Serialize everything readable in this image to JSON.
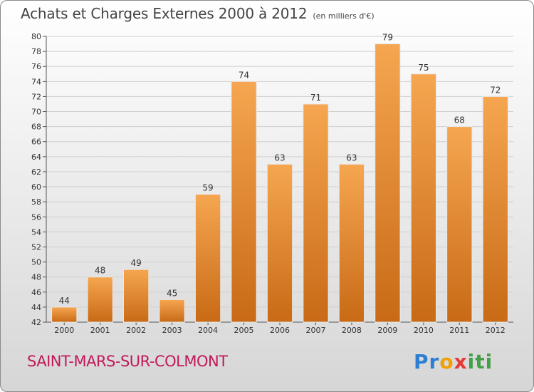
{
  "header": {
    "title": "Achats et Charges Externes 2000 à 2012",
    "subtitle": "(en milliers d'€)"
  },
  "footer": {
    "commune": "SAINT-MARS-SUR-COLMONT",
    "logo_text": "Proxiti"
  },
  "colors": {
    "bar_top": "#f6a650",
    "bar_bottom": "#c86a16",
    "title": "#444444",
    "commune": "#c2185b"
  },
  "chart_data": {
    "type": "bar",
    "title": "Achats et Charges Externes 2000 à 2012",
    "subtitle": "(en milliers d'€)",
    "xlabel": "",
    "ylabel": "",
    "categories": [
      "2000",
      "2001",
      "2002",
      "2003",
      "2004",
      "2005",
      "2006",
      "2007",
      "2008",
      "2009",
      "2010",
      "2011",
      "2012"
    ],
    "values": [
      44,
      48,
      49,
      45,
      59,
      74,
      63,
      71,
      63,
      79,
      75,
      68,
      72
    ],
    "ylim": [
      42,
      80
    ],
    "ytick_step": 2,
    "grid": true,
    "data_labels": true,
    "legend": "none"
  }
}
